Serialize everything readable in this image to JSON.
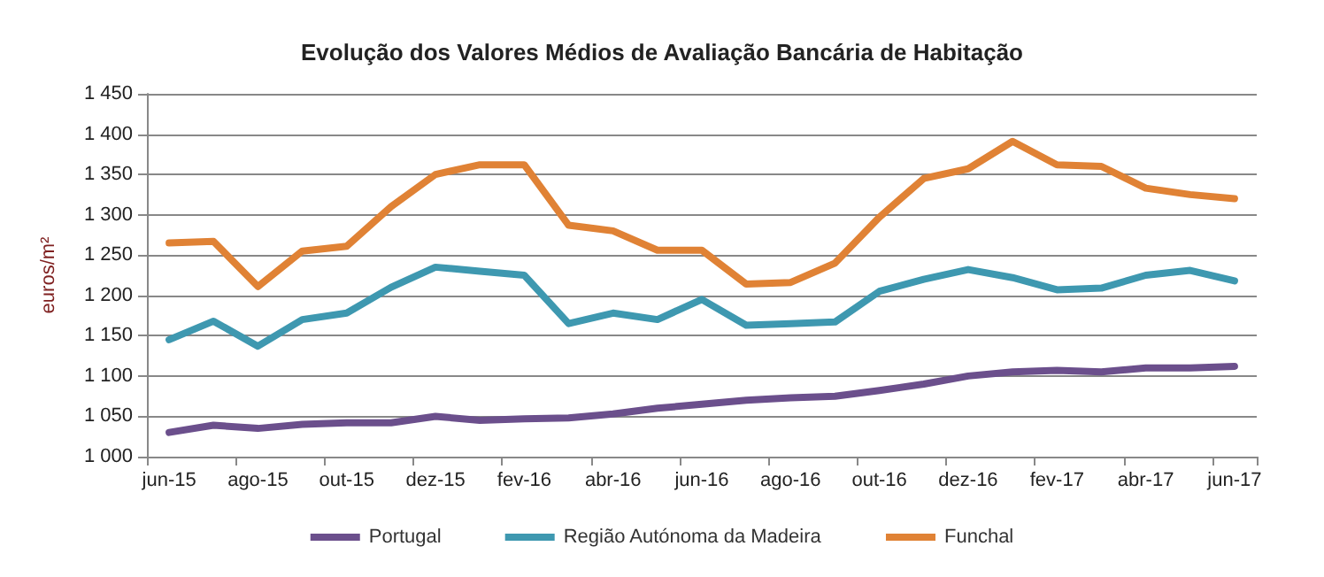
{
  "chart_data": {
    "type": "line",
    "title": "Evolução dos Valores Médios de Avaliação Bancária de Habitação",
    "ylabel": "euros/m²",
    "categories": [
      "jun-15",
      null,
      "ago-15",
      null,
      "out-15",
      null,
      "dez-15",
      null,
      "fev-16",
      null,
      "abr-16",
      null,
      "jun-16",
      null,
      "ago-16",
      null,
      "out-16",
      null,
      "dez-16",
      null,
      "fev-17",
      null,
      "abr-17",
      null,
      "jun-17"
    ],
    "series": [
      {
        "name": "Portugal",
        "color": "#6b4f8c",
        "values": [
          1030,
          1039,
          1035,
          1040,
          1042,
          1042,
          1050,
          1045,
          1047,
          1048,
          1053,
          1060,
          1065,
          1070,
          1073,
          1075,
          1082,
          1090,
          1100,
          1105,
          1107,
          1105,
          1110,
          1110,
          1112
        ]
      },
      {
        "name": "Região Autónoma da Madeira",
        "color": "#3e98b0",
        "values": [
          1145,
          1168,
          1137,
          1170,
          1178,
          1210,
          1235,
          1230,
          1225,
          1165,
          1178,
          1170,
          1195,
          1163,
          1165,
          1167,
          1205,
          1220,
          1232,
          1222,
          1207,
          1209,
          1225,
          1231,
          1218
        ]
      },
      {
        "name": "Funchal",
        "color": "#e08235",
        "values": [
          1265,
          1267,
          1211,
          1255,
          1261,
          1310,
          1350,
          1362,
          1362,
          1287,
          1280,
          1256,
          1256,
          1214,
          1216,
          1240,
          1297,
          1345,
          1357,
          1391,
          1362,
          1360,
          1333,
          1325,
          1320
        ]
      }
    ],
    "ylim": [
      1000,
      1450
    ],
    "yticks": [
      {
        "value": 1000,
        "label": "1 000"
      },
      {
        "value": 1050,
        "label": "1 050"
      },
      {
        "value": 1100,
        "label": "1 100"
      },
      {
        "value": 1150,
        "label": "1 150"
      },
      {
        "value": 1200,
        "label": "1 200"
      },
      {
        "value": 1250,
        "label": "1 250"
      },
      {
        "value": 1300,
        "label": "1 300"
      },
      {
        "value": 1350,
        "label": "1 350"
      },
      {
        "value": 1400,
        "label": "1 400"
      },
      {
        "value": 1450,
        "label": "1 450"
      }
    ],
    "grid": "y",
    "legend": "bottom",
    "marker": "none",
    "line_style": "solid"
  }
}
